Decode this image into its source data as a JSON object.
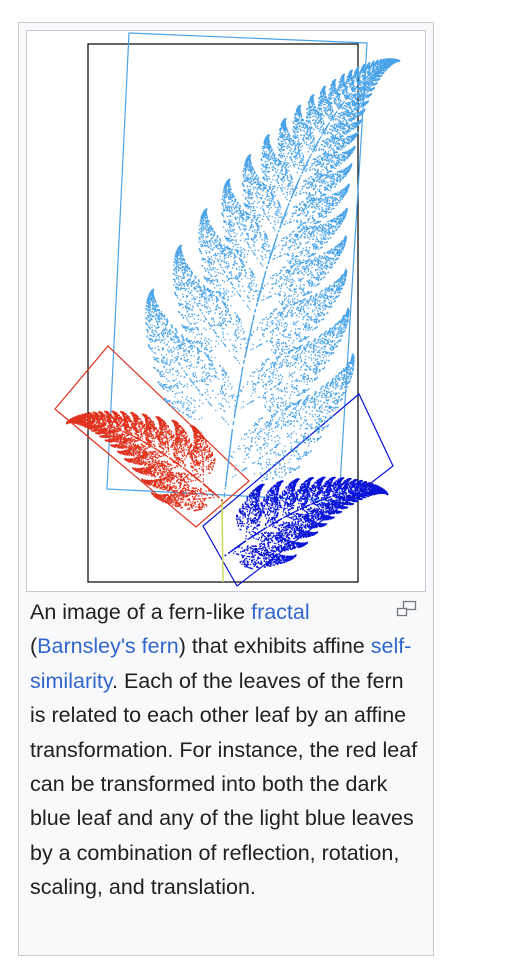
{
  "figure": {
    "caption": {
      "text1": "An image of a fern-like ",
      "link_fractal": "fractal",
      "text2": "(",
      "link_barnsley": "Barnsley's fern",
      "text3": ") that exhibits affine ",
      "link_self_similarity": "self-similarity",
      "text4": ". Each of the leaves of the fern is related to each other leaf by an affine transformation. For instance, the red leaf can be transformed into both the dark blue leaf and any of the light blue leaves by a combination of reflection, rotation, scaling, and translation."
    },
    "icons": {
      "enlarge": "magnify-clip-icon"
    },
    "colors": {
      "light_blue": "#4aa3e8",
      "red": "#e0321e",
      "dark_blue": "#0a14d8",
      "link": "#3366cc",
      "frame": "#c8ccd1"
    }
  }
}
